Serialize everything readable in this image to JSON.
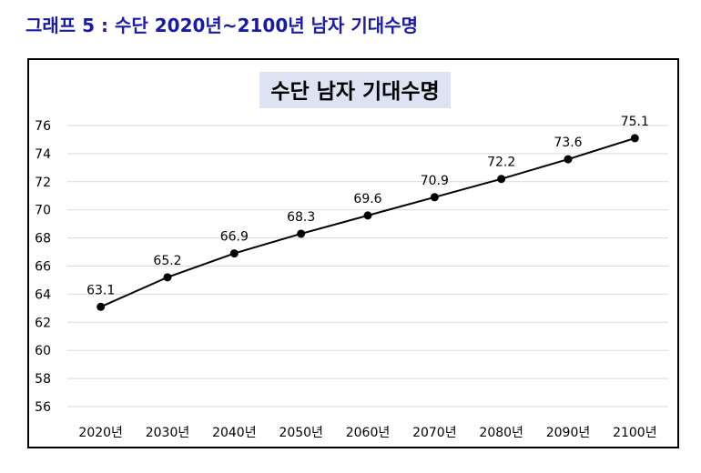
{
  "page": {
    "caption": "그래프 5 : 수단 2020년~2100년 남자 기대수명"
  },
  "colors": {
    "caption": "#1a1aa8",
    "title_box": "#dde3f3",
    "gridline": "#d9d9d9",
    "series": "#000000"
  },
  "chart_data": {
    "type": "line",
    "title": "수단 남자 기대수명",
    "xlabel": "",
    "ylabel": "",
    "categories": [
      "2020년",
      "2030년",
      "2040년",
      "2050년",
      "2060년",
      "2070년",
      "2080년",
      "2090년",
      "2100년"
    ],
    "series": [
      {
        "values": [
          63.1,
          65.2,
          66.9,
          68.3,
          69.6,
          70.9,
          72.2,
          73.6,
          75.1
        ]
      }
    ],
    "ylim": [
      56,
      76
    ],
    "yticks": [
      56,
      58,
      60,
      62,
      64,
      66,
      68,
      70,
      72,
      74,
      76
    ],
    "grid": true,
    "legend": "none",
    "markers": "filled-circle",
    "data_labels": true
  }
}
